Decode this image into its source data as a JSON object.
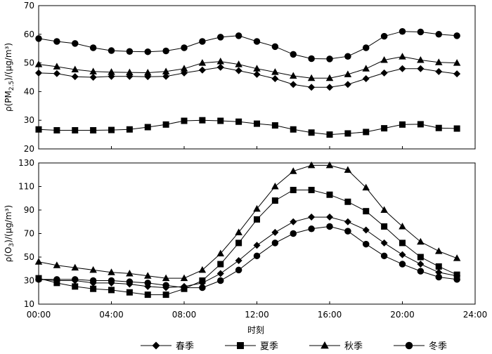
{
  "chart_data": [
    {
      "type": "line",
      "ylabel": "ρ(PM2.5)/(μg/m³)",
      "ylabel_parts": {
        "pre": "ρ(PM",
        "sub": "2.5",
        "post": ")/(μg/m³)"
      },
      "ylim": [
        20,
        70
      ],
      "yticks": [
        20,
        30,
        40,
        50,
        60,
        70
      ],
      "xlim": [
        0,
        24
      ],
      "x": [
        0,
        1,
        2,
        3,
        4,
        5,
        6,
        7,
        8,
        9,
        10,
        11,
        12,
        13,
        14,
        15,
        16,
        17,
        18,
        19,
        20,
        21,
        22,
        23
      ],
      "series": [
        {
          "name": "春季",
          "marker": "diamond",
          "values": [
            46.5,
            46.3,
            45.2,
            45.0,
            45.3,
            45.3,
            45.2,
            45.3,
            46.5,
            47.5,
            48.5,
            47.3,
            46.0,
            44.5,
            42.5,
            41.5,
            41.5,
            42.5,
            44.5,
            46.5,
            48.0,
            48.0,
            47.0,
            46.2
          ]
        },
        {
          "name": "夏季",
          "marker": "square",
          "values": [
            26.8,
            26.5,
            26.5,
            26.5,
            26.6,
            26.8,
            27.6,
            28.5,
            29.8,
            30.0,
            29.8,
            29.5,
            28.8,
            28.2,
            26.8,
            25.7,
            25.0,
            25.4,
            25.9,
            27.2,
            28.5,
            28.6,
            27.3,
            27.1
          ]
        },
        {
          "name": "秋季",
          "marker": "triangle",
          "values": [
            49.5,
            48.7,
            47.7,
            47.0,
            46.8,
            46.7,
            46.6,
            47.0,
            48.0,
            50.0,
            50.5,
            49.5,
            48.0,
            46.8,
            45.5,
            44.7,
            44.7,
            46.0,
            48.0,
            51.0,
            52.2,
            51.0,
            50.2,
            50.0
          ]
        },
        {
          "name": "冬季",
          "marker": "circle",
          "values": [
            58.5,
            57.5,
            56.8,
            55.3,
            54.3,
            54.0,
            53.9,
            54.2,
            55.3,
            57.5,
            59.0,
            59.5,
            57.5,
            55.7,
            53.0,
            51.5,
            51.4,
            52.3,
            55.3,
            59.3,
            61.0,
            60.8,
            60.0,
            59.5
          ]
        }
      ]
    },
    {
      "type": "line",
      "ylabel": "ρ(O3)/(μg/m³)",
      "ylabel_parts": {
        "pre": "ρ(O",
        "sub": "3",
        "post": ")/(μg/m³)"
      },
      "xlabel": "时刻",
      "ylim": [
        10,
        130
      ],
      "yticks": [
        10,
        30,
        50,
        70,
        90,
        110,
        130
      ],
      "xlim": [
        0,
        24
      ],
      "xticks": [
        0,
        4,
        8,
        12,
        16,
        20,
        24
      ],
      "xticklabels": [
        "00:00",
        "04:00",
        "08:00",
        "12:00",
        "16:00",
        "20:00",
        "24:00"
      ],
      "x": [
        0,
        1,
        2,
        3,
        4,
        5,
        6,
        7,
        8,
        9,
        10,
        11,
        12,
        13,
        14,
        15,
        16,
        17,
        18,
        19,
        20,
        21,
        22,
        23
      ],
      "series": [
        {
          "name": "春季",
          "marker": "diamond",
          "values": [
            31,
            30,
            30,
            28,
            28,
            27,
            25,
            24,
            25,
            28,
            36,
            47,
            60,
            71,
            80,
            84,
            84,
            80,
            73,
            62,
            52,
            44,
            37,
            34
          ]
        },
        {
          "name": "夏季",
          "marker": "square",
          "values": [
            32,
            28,
            25,
            23,
            22,
            20,
            18,
            18,
            23,
            30,
            44,
            62,
            82,
            98,
            107,
            107,
            103,
            97,
            89,
            76,
            62,
            50,
            42,
            35
          ]
        },
        {
          "name": "秋季",
          "marker": "triangle",
          "values": [
            46,
            43,
            41,
            39,
            37,
            36,
            34,
            32,
            32,
            39,
            53,
            71,
            91,
            110,
            123,
            128,
            128,
            124,
            109,
            90,
            76,
            63,
            55,
            49
          ]
        },
        {
          "name": "冬季",
          "marker": "circle",
          "values": [
            31,
            31,
            31,
            30,
            30,
            29,
            28,
            26,
            24,
            24,
            30,
            39,
            51,
            62,
            70,
            74,
            76,
            72,
            61,
            51,
            44,
            38,
            33,
            31
          ]
        }
      ]
    }
  ],
  "legend": {
    "position": "bottom-center",
    "entries": [
      "春季",
      "夏季",
      "秋季",
      "冬季"
    ]
  }
}
